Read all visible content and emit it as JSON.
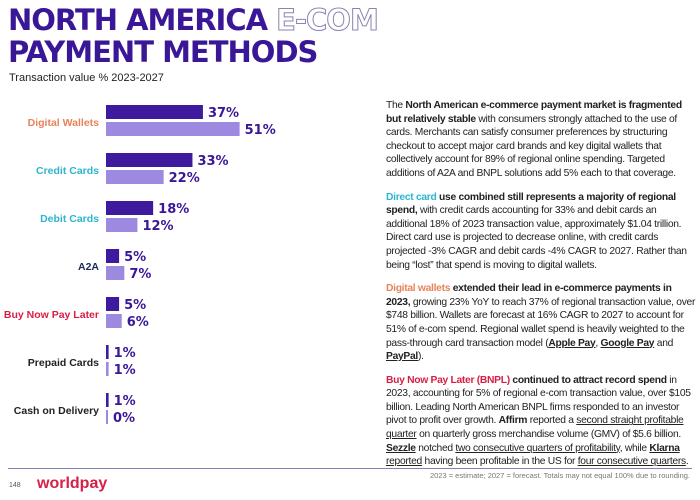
{
  "title": {
    "line1_solid": "NORTH AMERICA",
    "line1_outline": "E-COM",
    "line2": "PAYMENT METHODS"
  },
  "subtitle": "Transaction value % 2023-2027",
  "chart_data": {
    "type": "bar",
    "orientation": "horizontal",
    "categories": [
      "Digital Wallets",
      "Credit Cards",
      "Debit Cards",
      "A2A",
      "Buy Now Pay Later",
      "Prepaid Cards",
      "Cash on Delivery"
    ],
    "category_colors": [
      "#e8835a",
      "#2bb5d0",
      "#2bb5d0",
      "#1b2a5a",
      "#d81e45",
      "#222222",
      "#222222"
    ],
    "series": [
      {
        "name": "2023",
        "color": "#3d1a9e",
        "values": [
          37,
          33,
          18,
          5,
          5,
          1,
          1
        ]
      },
      {
        "name": "2027",
        "color": "#9d8ae0",
        "values": [
          51,
          22,
          12,
          7,
          6,
          1,
          0
        ]
      }
    ],
    "value_suffix": "%",
    "legend": "bottom",
    "grid": false
  },
  "text": {
    "p1": [
      [
        "The ",
        ""
      ],
      [
        "North American e-commerce payment market is fragmented but relatively stable",
        "b"
      ],
      [
        " with consumers strongly attached to the use of cards. Merchants can satisfy consumer preferences by structuring checkout to accept major card brands and key digital wallets that collectively account for 89% of regional online spending. Targeted additions of A2A and BNPL solutions add 5% each to that coverage.",
        ""
      ]
    ],
    "p2": [
      [
        "Direct card",
        "hl-c"
      ],
      [
        " use combined still represents a majority of regional spend,",
        "b"
      ],
      [
        " with credit cards accounting for 33% and debit cards an additional 18% of 2023 transaction value, approximately $1.04 trillion. Direct card use is projected to decrease online, with credit cards projected -3% CAGR and debit cards -4% CAGR to 2027. Rather than being “lost” that spend is moving to digital wallets.",
        ""
      ]
    ],
    "p3": [
      [
        "Digital wallets",
        "hl-o"
      ],
      [
        " extended their lead in e-commerce payments in 2023,",
        "b"
      ],
      [
        " growing 23% YoY to reach 37% of regional transaction value, over $748 billion. Wallets are forecast at 16% CAGR to 2027 to account for 51% of e-com spend. Regional wallet spend is heavily weighted to the pass-through card transaction model (",
        ""
      ],
      [
        "Apple Pay",
        "b u"
      ],
      [
        ", ",
        ""
      ],
      [
        "Google Pay",
        "b u"
      ],
      [
        " and ",
        ""
      ],
      [
        "PayPal",
        "b u"
      ],
      [
        ").",
        ""
      ]
    ],
    "p4": [
      [
        "Buy Now Pay Later (BNPL)",
        "hl-r"
      ],
      [
        " continued to attract record spend",
        "b"
      ],
      [
        " in 2023, accounting for 5% of regional e-com transaction value, over $105 billion. Leading North American BNPL firms responded to an investor pivot to profit over growth. ",
        ""
      ],
      [
        "Affirm",
        "b"
      ],
      [
        " reported a ",
        ""
      ],
      [
        "second straight profitable quarter",
        "u"
      ],
      [
        " on quarterly gross merchandise volume (GMV) of $5.6 billion. ",
        ""
      ],
      [
        "Sezzle",
        "b u"
      ],
      [
        " notched ",
        ""
      ],
      [
        "two consecutive quarters of profitability",
        "u"
      ],
      [
        ", while ",
        ""
      ],
      [
        "Klarna",
        "b u"
      ],
      [
        " ",
        ""
      ],
      [
        "reported",
        "u"
      ],
      [
        " having been profitable in the US for ",
        ""
      ],
      [
        "four consecutive quarters",
        "u"
      ],
      [
        ".",
        ""
      ]
    ]
  },
  "footer": {
    "note": "2023 = estimate; 2027 = forecast. Totals may not equal 100% due to rounding.",
    "page": "148",
    "logo": "worldpay"
  }
}
